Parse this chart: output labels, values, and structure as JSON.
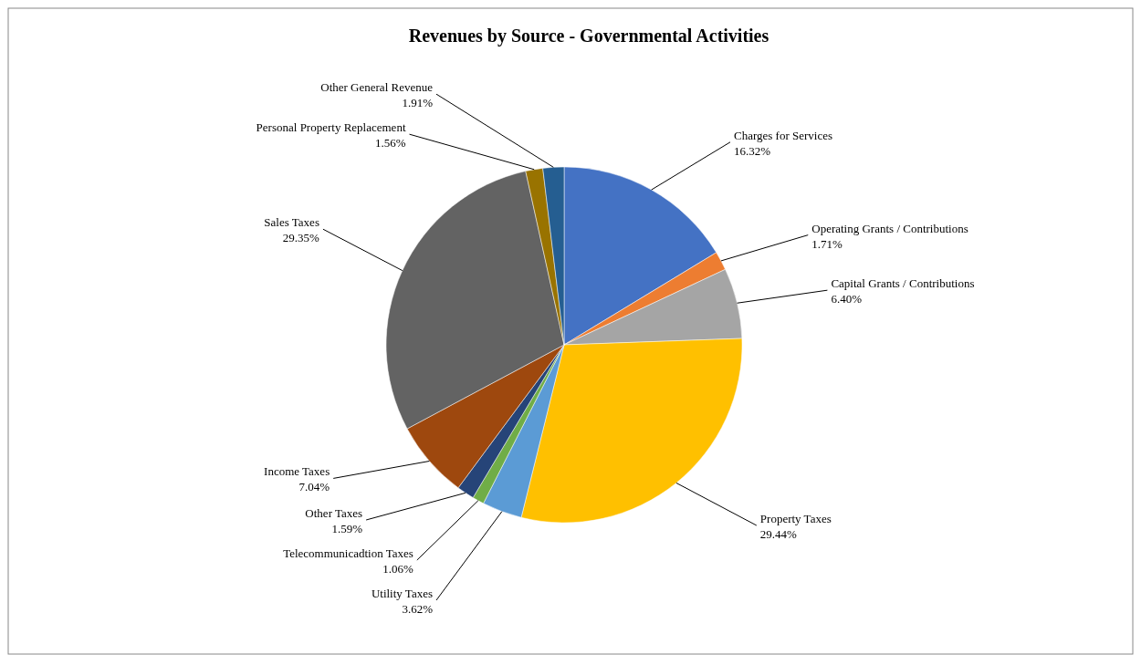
{
  "chart_data": {
    "type": "pie",
    "title": "Revenues by Source - Governmental Activities",
    "categories": [
      "Charges for Services",
      "Operating Grants / Contributions",
      "Capital Grants / Contributions",
      "Property Taxes",
      "Utility Taxes",
      "Telecommunicadtion Taxes",
      "Other Taxes",
      "Income Taxes",
      "Sales Taxes",
      "Personal Property Replacement",
      "Other General Revenue"
    ],
    "values": [
      16.32,
      1.71,
      6.4,
      29.44,
      3.62,
      1.06,
      1.59,
      7.04,
      29.35,
      1.56,
      1.91
    ],
    "value_labels": [
      "16.32%",
      "1.71%",
      "6.40%",
      "29.44%",
      "3.62%",
      "1.06%",
      "1.59%",
      "7.04%",
      "29.35%",
      "1.56%",
      "1.91%"
    ],
    "colors": [
      "#4472c4",
      "#ed7d31",
      "#a5a5a5",
      "#ffc000",
      "#5b9bd5",
      "#70ad47",
      "#264478",
      "#9e480e",
      "#636363",
      "#997300",
      "#255e91"
    ]
  }
}
